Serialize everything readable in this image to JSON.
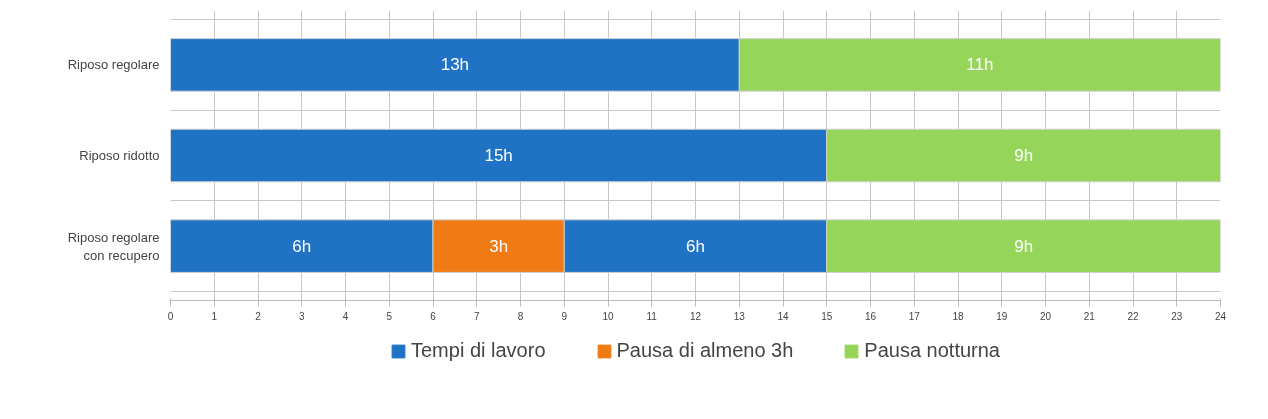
{
  "chart_data": {
    "type": "bar",
    "orientation": "horizontal",
    "stacked": true,
    "categories": [
      "Riposo regolare",
      "Riposo ridotto",
      "Riposo regolare con recupero"
    ],
    "series": [
      {
        "name": "Tempi di lavoro",
        "color": "#1f72c4",
        "values": [
          13,
          15,
          6
        ],
        "value_labels": [
          "13h",
          "15h",
          "6h"
        ]
      },
      {
        "name": "Pausa di almeno 3h",
        "color": "#f07a14",
        "values": [
          null,
          null,
          3
        ],
        "value_labels": [
          null,
          null,
          "3h"
        ]
      },
      {
        "color": "#1f72c4",
        "values": [
          null,
          null,
          6
        ],
        "value_labels": [
          null,
          null,
          "6h"
        ]
      },
      {
        "name": "Pausa notturna",
        "color": "#95d65a",
        "values": [
          11,
          9,
          9
        ],
        "value_labels": [
          "11h",
          "9h",
          "9h"
        ]
      }
    ],
    "xlim": [
      0,
      24
    ],
    "xticks": [
      0,
      1,
      2,
      3,
      4,
      5,
      6,
      7,
      8,
      9,
      10,
      11,
      12,
      13,
      14,
      15,
      16,
      17,
      18,
      19,
      20,
      21,
      22,
      23,
      24
    ],
    "grid": true,
    "legend": "bottom"
  }
}
